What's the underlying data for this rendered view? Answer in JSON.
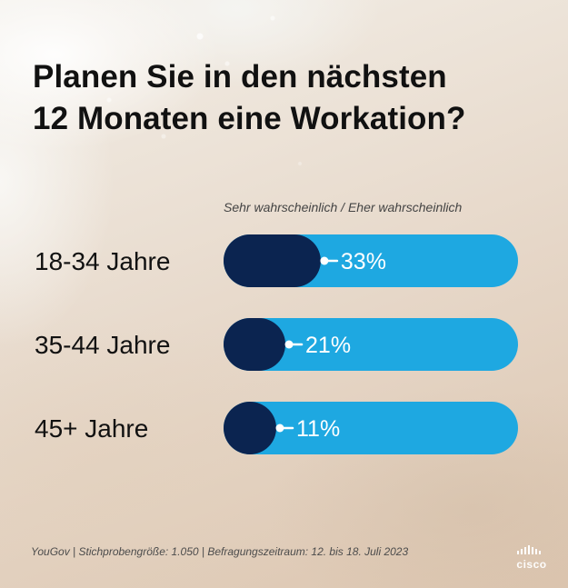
{
  "title": {
    "line1": "Planen Sie in den nächsten",
    "line2": "12 Monaten eine Workation?"
  },
  "legend": "Sehr wahrscheinlich / Eher wahrscheinlich",
  "source": "YouGov | Stichprobengröße: 1.050 | Befragungszeitraum: 12. bis 18. Juli 2023",
  "logo": {
    "text": "cisco"
  },
  "colors": {
    "dark": "#0b2450",
    "light": "#1ea8e1",
    "value_text": "#ffffff",
    "category_text": "#111111"
  },
  "chart_data": {
    "type": "bar",
    "categories": [
      "18-34 Jahre",
      "35-44 Jahre",
      "45+ Jahre"
    ],
    "values": [
      33,
      21,
      11
    ],
    "value_labels": [
      "33%",
      "21%",
      "11%"
    ],
    "ylim": [
      0,
      100
    ],
    "title": "Planen Sie in den nächsten 12 Monaten eine Workation?",
    "series": [
      {
        "name": "Sehr wahrscheinlich / Eher wahrscheinlich",
        "values": [
          33,
          21,
          11
        ]
      }
    ]
  }
}
